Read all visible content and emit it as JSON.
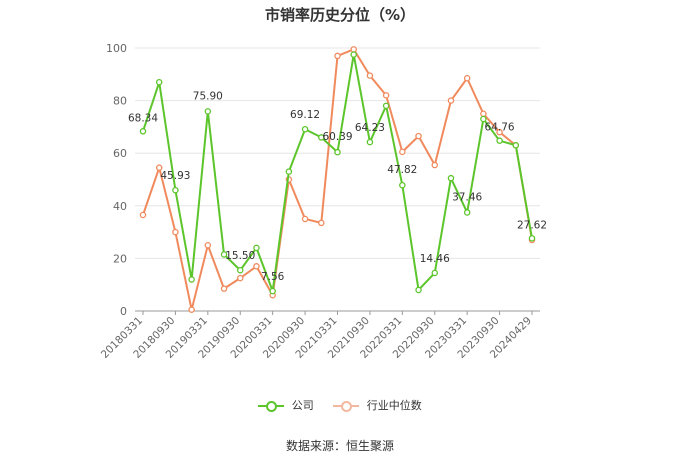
{
  "chart_data": {
    "type": "line",
    "title": "市销率历史分位（%）",
    "ylim": [
      0,
      100
    ],
    "yticks": [
      0,
      20,
      40,
      60,
      80,
      100
    ],
    "x_tick_labels": [
      "20180331",
      "20180930",
      "20190331",
      "20190930",
      "20200331",
      "20200930",
      "20210331",
      "20210930",
      "20220331",
      "20220930",
      "20230331",
      "20230930",
      "20240429"
    ],
    "x": [
      "20180331",
      "20180630",
      "20180930",
      "20181231",
      "20190331",
      "20190630",
      "20190930",
      "20191231",
      "20200331",
      "20200630",
      "20200930",
      "20201231",
      "20210331",
      "20210630",
      "20210930",
      "20211231",
      "20220331",
      "20220630",
      "20220930",
      "20221231",
      "20230331",
      "20230630",
      "20230930",
      "20231231",
      "20240429"
    ],
    "series": [
      {
        "name": "公司",
        "color": "#5cc52b",
        "values": [
          68.34,
          87.0,
          45.93,
          12.0,
          75.9,
          21.5,
          15.5,
          24.0,
          7.56,
          53.0,
          69.12,
          66.0,
          60.39,
          97.5,
          64.23,
          78.0,
          47.82,
          8.0,
          14.46,
          50.5,
          37.46,
          73.0,
          64.76,
          63.0,
          27.62
        ],
        "labels": {
          "0": "68.34",
          "2": "45.93",
          "4": "75.90",
          "6": "15.50",
          "8": "7.56",
          "10": "69.12",
          "12": "60.39",
          "14": "64.23",
          "16": "47.82",
          "18": "14.46",
          "20": "37.46",
          "22": "64.76",
          "24": "27.62"
        }
      },
      {
        "name": "行业中位数",
        "color": "#f08a5d",
        "values": [
          36.5,
          54.5,
          30.0,
          0.5,
          25.0,
          8.5,
          12.5,
          17.0,
          6.0,
          50.0,
          35.0,
          33.5,
          97.0,
          99.5,
          89.5,
          82.0,
          60.5,
          66.5,
          55.5,
          80.0,
          88.5,
          75.0,
          68.0,
          63.0,
          27.0
        ]
      }
    ],
    "grid": true,
    "legend_position": "bottom"
  },
  "source": "数据来源：恒生聚源"
}
